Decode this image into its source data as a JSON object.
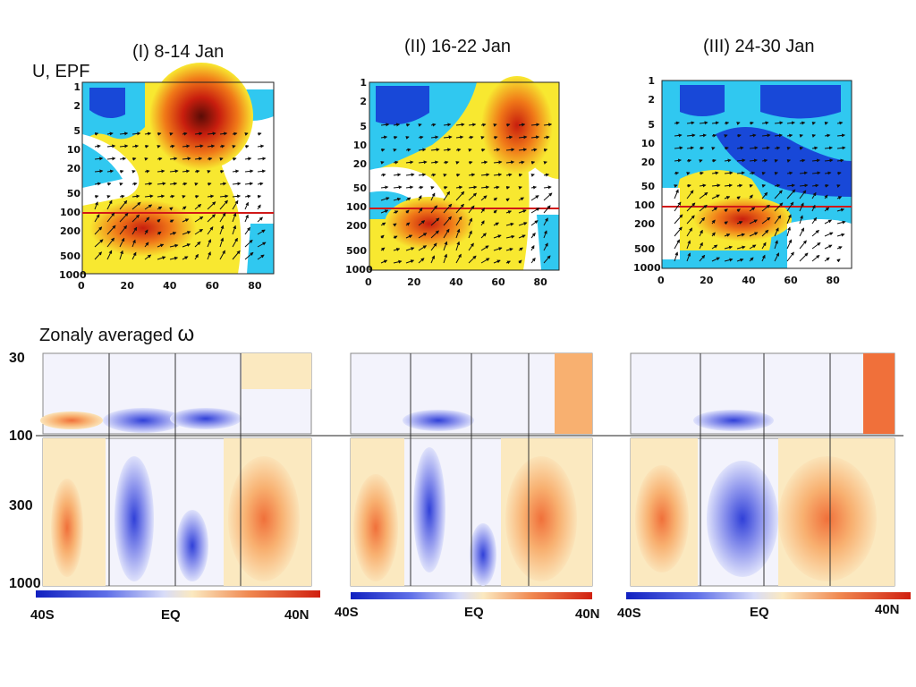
{
  "upper": {
    "heading": "U, EPF",
    "panels": [
      {
        "title": "(I) 8-14 Jan"
      },
      {
        "title": "(II) 16-22 Jan"
      },
      {
        "title": "(III) 24-30 Jan"
      }
    ],
    "y_ticks": [
      "1",
      "2",
      "5",
      "10",
      "20",
      "50",
      "100",
      "200",
      "500",
      "1000"
    ],
    "x_ticks": [
      "0",
      "20",
      "40",
      "60",
      "80"
    ]
  },
  "lower": {
    "heading": "Zonaly averaged",
    "heading_symbol": "ω",
    "pressure_labels": [
      "30",
      "100",
      "300",
      "1000"
    ],
    "lat_labels_a": [
      "40S",
      "EQ",
      "40N"
    ],
    "lat_labels_b": [
      "40S",
      "EQ",
      "40N"
    ],
    "lat_labels_c": [
      "40S",
      "EQ",
      "40N"
    ]
  },
  "colors": {
    "deep_blue": "#1848d8",
    "light_blue": "#30c8f0",
    "yellow": "#f8e830",
    "orange": "#f07818",
    "red": "#d02010",
    "dark_red": "#601008",
    "ref_line": "#d01818"
  }
}
